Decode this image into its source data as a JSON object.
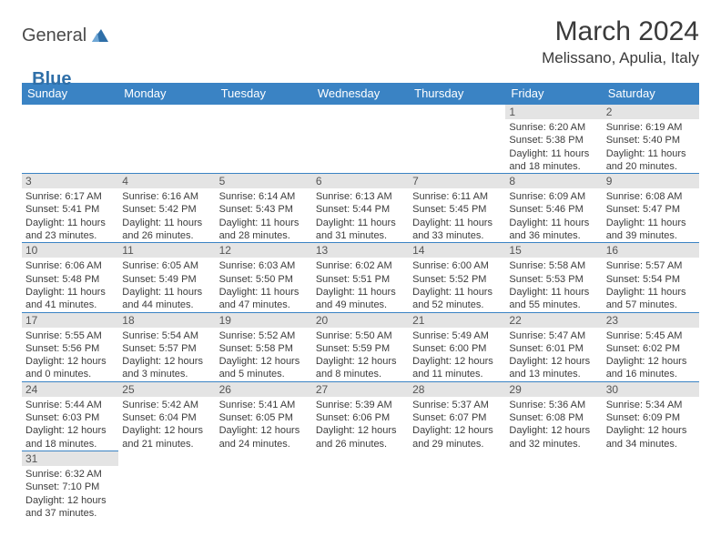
{
  "brand": {
    "general": "General",
    "blue": "Blue"
  },
  "title": "March 2024",
  "location": "Melissano, Apulia, Italy",
  "colors": {
    "header_bg": "#3a83c4",
    "header_fg": "#ffffff",
    "daynum_bg": "#e4e4e4",
    "row_border": "#3a83c4",
    "brand_blue": "#2f6fa8"
  },
  "weekdays": [
    "Sunday",
    "Monday",
    "Tuesday",
    "Wednesday",
    "Thursday",
    "Friday",
    "Saturday"
  ],
  "weeks": [
    [
      {
        "n": "",
        "sr": "",
        "ss": "",
        "dl": ""
      },
      {
        "n": "",
        "sr": "",
        "ss": "",
        "dl": ""
      },
      {
        "n": "",
        "sr": "",
        "ss": "",
        "dl": ""
      },
      {
        "n": "",
        "sr": "",
        "ss": "",
        "dl": ""
      },
      {
        "n": "",
        "sr": "",
        "ss": "",
        "dl": ""
      },
      {
        "n": "1",
        "sr": "Sunrise: 6:20 AM",
        "ss": "Sunset: 5:38 PM",
        "dl": "Daylight: 11 hours and 18 minutes."
      },
      {
        "n": "2",
        "sr": "Sunrise: 6:19 AM",
        "ss": "Sunset: 5:40 PM",
        "dl": "Daylight: 11 hours and 20 minutes."
      }
    ],
    [
      {
        "n": "3",
        "sr": "Sunrise: 6:17 AM",
        "ss": "Sunset: 5:41 PM",
        "dl": "Daylight: 11 hours and 23 minutes."
      },
      {
        "n": "4",
        "sr": "Sunrise: 6:16 AM",
        "ss": "Sunset: 5:42 PM",
        "dl": "Daylight: 11 hours and 26 minutes."
      },
      {
        "n": "5",
        "sr": "Sunrise: 6:14 AM",
        "ss": "Sunset: 5:43 PM",
        "dl": "Daylight: 11 hours and 28 minutes."
      },
      {
        "n": "6",
        "sr": "Sunrise: 6:13 AM",
        "ss": "Sunset: 5:44 PM",
        "dl": "Daylight: 11 hours and 31 minutes."
      },
      {
        "n": "7",
        "sr": "Sunrise: 6:11 AM",
        "ss": "Sunset: 5:45 PM",
        "dl": "Daylight: 11 hours and 33 minutes."
      },
      {
        "n": "8",
        "sr": "Sunrise: 6:09 AM",
        "ss": "Sunset: 5:46 PM",
        "dl": "Daylight: 11 hours and 36 minutes."
      },
      {
        "n": "9",
        "sr": "Sunrise: 6:08 AM",
        "ss": "Sunset: 5:47 PM",
        "dl": "Daylight: 11 hours and 39 minutes."
      }
    ],
    [
      {
        "n": "10",
        "sr": "Sunrise: 6:06 AM",
        "ss": "Sunset: 5:48 PM",
        "dl": "Daylight: 11 hours and 41 minutes."
      },
      {
        "n": "11",
        "sr": "Sunrise: 6:05 AM",
        "ss": "Sunset: 5:49 PM",
        "dl": "Daylight: 11 hours and 44 minutes."
      },
      {
        "n": "12",
        "sr": "Sunrise: 6:03 AM",
        "ss": "Sunset: 5:50 PM",
        "dl": "Daylight: 11 hours and 47 minutes."
      },
      {
        "n": "13",
        "sr": "Sunrise: 6:02 AM",
        "ss": "Sunset: 5:51 PM",
        "dl": "Daylight: 11 hours and 49 minutes."
      },
      {
        "n": "14",
        "sr": "Sunrise: 6:00 AM",
        "ss": "Sunset: 5:52 PM",
        "dl": "Daylight: 11 hours and 52 minutes."
      },
      {
        "n": "15",
        "sr": "Sunrise: 5:58 AM",
        "ss": "Sunset: 5:53 PM",
        "dl": "Daylight: 11 hours and 55 minutes."
      },
      {
        "n": "16",
        "sr": "Sunrise: 5:57 AM",
        "ss": "Sunset: 5:54 PM",
        "dl": "Daylight: 11 hours and 57 minutes."
      }
    ],
    [
      {
        "n": "17",
        "sr": "Sunrise: 5:55 AM",
        "ss": "Sunset: 5:56 PM",
        "dl": "Daylight: 12 hours and 0 minutes."
      },
      {
        "n": "18",
        "sr": "Sunrise: 5:54 AM",
        "ss": "Sunset: 5:57 PM",
        "dl": "Daylight: 12 hours and 3 minutes."
      },
      {
        "n": "19",
        "sr": "Sunrise: 5:52 AM",
        "ss": "Sunset: 5:58 PM",
        "dl": "Daylight: 12 hours and 5 minutes."
      },
      {
        "n": "20",
        "sr": "Sunrise: 5:50 AM",
        "ss": "Sunset: 5:59 PM",
        "dl": "Daylight: 12 hours and 8 minutes."
      },
      {
        "n": "21",
        "sr": "Sunrise: 5:49 AM",
        "ss": "Sunset: 6:00 PM",
        "dl": "Daylight: 12 hours and 11 minutes."
      },
      {
        "n": "22",
        "sr": "Sunrise: 5:47 AM",
        "ss": "Sunset: 6:01 PM",
        "dl": "Daylight: 12 hours and 13 minutes."
      },
      {
        "n": "23",
        "sr": "Sunrise: 5:45 AM",
        "ss": "Sunset: 6:02 PM",
        "dl": "Daylight: 12 hours and 16 minutes."
      }
    ],
    [
      {
        "n": "24",
        "sr": "Sunrise: 5:44 AM",
        "ss": "Sunset: 6:03 PM",
        "dl": "Daylight: 12 hours and 18 minutes."
      },
      {
        "n": "25",
        "sr": "Sunrise: 5:42 AM",
        "ss": "Sunset: 6:04 PM",
        "dl": "Daylight: 12 hours and 21 minutes."
      },
      {
        "n": "26",
        "sr": "Sunrise: 5:41 AM",
        "ss": "Sunset: 6:05 PM",
        "dl": "Daylight: 12 hours and 24 minutes."
      },
      {
        "n": "27",
        "sr": "Sunrise: 5:39 AM",
        "ss": "Sunset: 6:06 PM",
        "dl": "Daylight: 12 hours and 26 minutes."
      },
      {
        "n": "28",
        "sr": "Sunrise: 5:37 AM",
        "ss": "Sunset: 6:07 PM",
        "dl": "Daylight: 12 hours and 29 minutes."
      },
      {
        "n": "29",
        "sr": "Sunrise: 5:36 AM",
        "ss": "Sunset: 6:08 PM",
        "dl": "Daylight: 12 hours and 32 minutes."
      },
      {
        "n": "30",
        "sr": "Sunrise: 5:34 AM",
        "ss": "Sunset: 6:09 PM",
        "dl": "Daylight: 12 hours and 34 minutes."
      }
    ],
    [
      {
        "n": "31",
        "sr": "Sunrise: 6:32 AM",
        "ss": "Sunset: 7:10 PM",
        "dl": "Daylight: 12 hours and 37 minutes."
      },
      {
        "n": "",
        "sr": "",
        "ss": "",
        "dl": ""
      },
      {
        "n": "",
        "sr": "",
        "ss": "",
        "dl": ""
      },
      {
        "n": "",
        "sr": "",
        "ss": "",
        "dl": ""
      },
      {
        "n": "",
        "sr": "",
        "ss": "",
        "dl": ""
      },
      {
        "n": "",
        "sr": "",
        "ss": "",
        "dl": ""
      },
      {
        "n": "",
        "sr": "",
        "ss": "",
        "dl": ""
      }
    ]
  ]
}
